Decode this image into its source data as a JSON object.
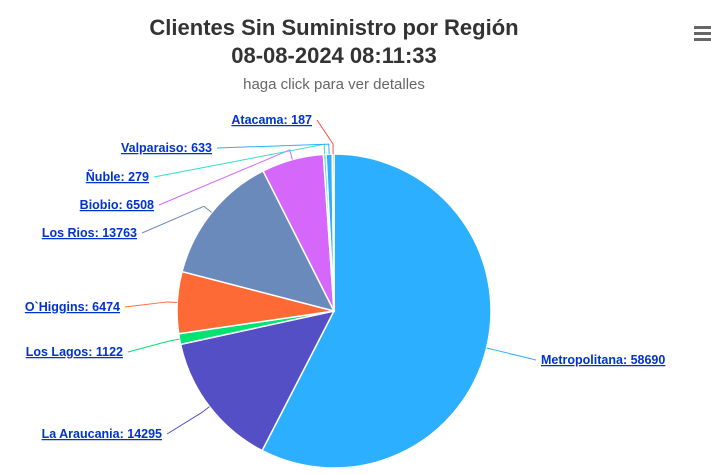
{
  "header": {
    "title_line1": "Clientes Sin Suministro por Región",
    "title_line2": "08-08-2024 08:11:33",
    "subtitle": "haga click para ver detalles"
  },
  "menu": {
    "icon": "hamburger-menu-icon"
  },
  "chart_data": {
    "type": "pie",
    "title": "Clientes Sin Suministro por Región 08-08-2024 08:11:33",
    "subtitle": "haga click para ver detalles",
    "slices": [
      {
        "name": "Metropolitana",
        "value": 58690,
        "color": "#2caffe",
        "label": "Metropolitana: 58690"
      },
      {
        "name": "La Araucania",
        "value": 14295,
        "color": "#544fc5",
        "label": "La Araucania: 14295"
      },
      {
        "name": "Los Lagos",
        "value": 1122,
        "color": "#00e272",
        "label": "Los Lagos: 1122"
      },
      {
        "name": "O`Higgins",
        "value": 6474,
        "color": "#fe6a35",
        "label": "O`Higgins: 6474"
      },
      {
        "name": "Los Rios",
        "value": 13763,
        "color": "#6b8abc",
        "label": "Los Rios: 13763"
      },
      {
        "name": "Biobio",
        "value": 6508,
        "color": "#d568fb",
        "label": "Biobio: 6508"
      },
      {
        "name": "Ñuble",
        "value": 279,
        "color": "#2ee0ca",
        "label": "Ñuble: 279"
      },
      {
        "name": "Valparaiso",
        "value": 633,
        "color": "#2caffe",
        "label": "Valparaiso: 633"
      },
      {
        "name": "Atacama",
        "value": 187,
        "color": "#fa4b42",
        "label": "Atacama: 187"
      }
    ]
  }
}
